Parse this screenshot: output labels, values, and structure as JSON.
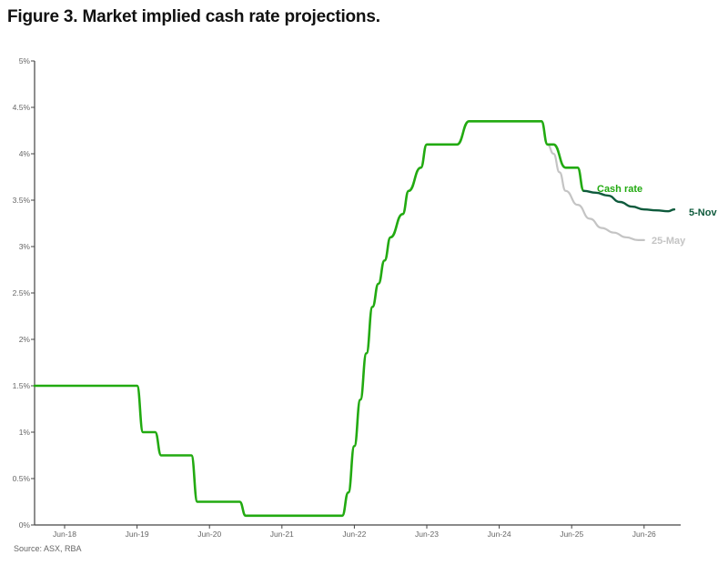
{
  "title": "Figure 3. Market implied cash rate projections.",
  "source": "Source: ASX, RBA",
  "colors": {
    "cash_rate": "#22aa11",
    "nov": "#0e5a3c",
    "may": "#c4c4c4",
    "axis": "#444444"
  },
  "chart_data": {
    "type": "line",
    "title": "Figure 3. Market implied cash rate projections.",
    "xlabel": "",
    "ylabel": "",
    "ylim": [
      0,
      5
    ],
    "yticks": [
      "0%",
      "0.5%",
      "1%",
      "1.5%",
      "2%",
      "2.5%",
      "3%",
      "3.5%",
      "4%",
      "4.5%",
      "5%"
    ],
    "xticks": [
      "Jun-18",
      "Jun-19",
      "Jun-20",
      "Jun-21",
      "Jun-22",
      "Jun-23",
      "Jun-24",
      "Jun-25",
      "Jun-26"
    ],
    "grid": false,
    "legend": "inline labels",
    "series": [
      {
        "name": "Cash rate",
        "x": [
          "Dec-17",
          "Jun-19",
          "Jul-19",
          "Sep-19",
          "Oct-19",
          "Mar-20",
          "Apr-20",
          "Nov-20",
          "Dec-20",
          "Apr-22",
          "May-22",
          "Jun-22",
          "Jul-22",
          "Aug-22",
          "Sep-22",
          "Oct-22",
          "Nov-22",
          "Dec-22",
          "Feb-23",
          "Mar-23",
          "May-23",
          "Jun-23",
          "Nov-23",
          "Jan-24",
          "Jan-25",
          "Feb-25",
          "Mar-25",
          "May-25",
          "Jul-25",
          "Aug-25"
        ],
        "values": [
          1.5,
          1.5,
          1.0,
          1.0,
          0.75,
          0.75,
          0.25,
          0.25,
          0.1,
          0.1,
          0.35,
          0.85,
          1.35,
          1.85,
          2.35,
          2.6,
          2.85,
          3.1,
          3.35,
          3.6,
          3.85,
          4.1,
          4.1,
          4.35,
          4.35,
          4.1,
          4.1,
          3.85,
          3.85,
          3.6
        ]
      },
      {
        "name": "5-Nov",
        "x": [
          "Aug-25",
          "Oct-25",
          "Dec-25",
          "Feb-26",
          "Apr-26",
          "Jun-26",
          "Aug-26",
          "Oct-26",
          "Nov-26"
        ],
        "values": [
          3.6,
          3.58,
          3.55,
          3.48,
          3.43,
          3.4,
          3.39,
          3.38,
          3.4
        ]
      },
      {
        "name": "25-May",
        "x": [
          "Feb-25",
          "Mar-25",
          "Apr-25",
          "May-25",
          "Jul-25",
          "Sep-25",
          "Nov-25",
          "Jan-26",
          "Mar-26",
          "May-26",
          "Jun-26"
        ],
        "values": [
          4.1,
          4.0,
          3.8,
          3.6,
          3.45,
          3.3,
          3.2,
          3.15,
          3.1,
          3.07,
          3.07
        ]
      }
    ],
    "annotations": [
      {
        "text": "Cash rate",
        "color": "#22aa11"
      },
      {
        "text": "5-Nov",
        "color": "#0e5a3c"
      },
      {
        "text": "25-May",
        "color": "#c4c4c4"
      }
    ]
  }
}
